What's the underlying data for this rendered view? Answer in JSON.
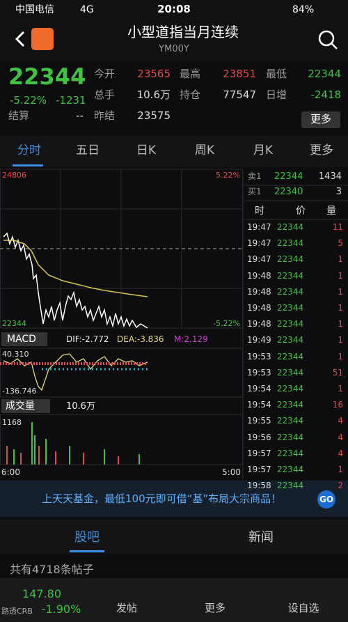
{
  "status": {
    "carrier": "中国电信",
    "network": "4G",
    "time": "20:08",
    "battery": "84%"
  },
  "header": {
    "title": "小型道指当月连续",
    "code": "YM00Y"
  },
  "quote": {
    "price": "22344",
    "change_pct": "-5.22%",
    "change": "-1231",
    "fields": [
      {
        "label": "今开",
        "value": "23565"
      },
      {
        "label": "最高",
        "value": "23851"
      },
      {
        "label": "最低",
        "value": "22344"
      },
      {
        "label": "总手",
        "value": "10.6万"
      },
      {
        "label": "持仓",
        "value": "77547"
      },
      {
        "label": "日增",
        "value": "-2418"
      },
      {
        "label": "结算",
        "value": "--"
      },
      {
        "label": "昨结",
        "value": "23575"
      }
    ],
    "more": "更多"
  },
  "tabs": [
    "分时",
    "五日",
    "日K",
    "周K",
    "月K",
    "更多"
  ],
  "chart": {
    "top_price": "24806",
    "top_pct": "5.22%",
    "bottom_price": "22344",
    "bottom_pct": "-5.22%",
    "macd": {
      "label": "MACD",
      "dif": "DIF:-2.772",
      "dea": "DEA:-3.836",
      "m": "M:2.129",
      "top": "40.310",
      "bottom": "-136.746"
    },
    "volume": {
      "label": "成交量",
      "total": "10.6万",
      "max": "1168"
    },
    "time_start": "6:00",
    "time_end": "5:00"
  },
  "order_book": {
    "sell": {
      "label": "卖1",
      "price": "22344",
      "qty": "1434"
    },
    "buy": {
      "label": "买1",
      "price": "22340",
      "qty": "3"
    }
  },
  "trades": {
    "header": [
      "时",
      "价",
      "量"
    ],
    "rows": [
      [
        "19:47",
        "22344",
        "11"
      ],
      [
        "19:47",
        "22344",
        "5"
      ],
      [
        "19:47",
        "22344",
        "1"
      ],
      [
        "19:48",
        "22344",
        "1"
      ],
      [
        "19:48",
        "22344",
        "1"
      ],
      [
        "19:48",
        "22344",
        "1"
      ],
      [
        "19:48",
        "22344",
        "1"
      ],
      [
        "19:49",
        "22344",
        "1"
      ],
      [
        "19:53",
        "22344",
        "1"
      ],
      [
        "19:53",
        "22344",
        "51"
      ],
      [
        "19:54",
        "22344",
        "1"
      ],
      [
        "19:54",
        "22344",
        "16"
      ],
      [
        "19:55",
        "22344",
        "4"
      ],
      [
        "19:56",
        "22344",
        "4"
      ],
      [
        "19:57",
        "22344",
        "4"
      ],
      [
        "19:57",
        "22344",
        "1"
      ],
      [
        "19:58",
        "22344",
        "2"
      ]
    ]
  },
  "banner": {
    "text": "上天天基金，最低100元即可借“基”布局大宗商品！",
    "button": "GO"
  },
  "sections": [
    "股吧",
    "新闻"
  ],
  "posts": "共有4718条帖子",
  "footer": {
    "index_value": "147.80",
    "index_name": "路透CRB",
    "index_change": "-1.90%",
    "nav": [
      "发帖",
      "更多",
      "设自选"
    ]
  }
}
